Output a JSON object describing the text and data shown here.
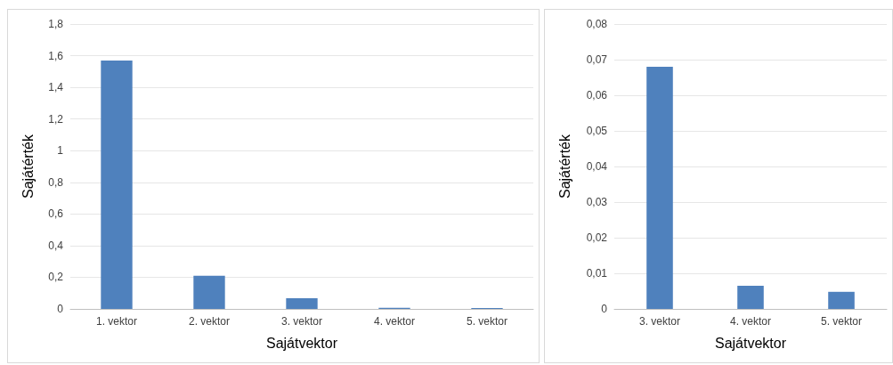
{
  "chart_data": [
    {
      "type": "bar",
      "xlabel": "Sajátvektor",
      "ylabel": "Sajátérték",
      "categories": [
        "1. vektor",
        "2. vektor",
        "3. vektor",
        "4. vektor",
        "5. vektor"
      ],
      "series": [
        {
          "color": "#4f81bd",
          "values": [
            1.57,
            0.21,
            0.068,
            0.007,
            0.005
          ]
        }
      ],
      "ylim": [
        0,
        1.8
      ],
      "yticks": [
        {
          "value": 0,
          "label": "0"
        },
        {
          "value": 0.2,
          "label": "0,2"
        },
        {
          "value": 0.4,
          "label": "0,4"
        },
        {
          "value": 0.6,
          "label": "0,6"
        },
        {
          "value": 0.8,
          "label": "0,8"
        },
        {
          "value": 1,
          "label": "1"
        },
        {
          "value": 1.2,
          "label": "1,2"
        },
        {
          "value": 1.4,
          "label": "1,4"
        },
        {
          "value": 1.6,
          "label": "1,6"
        },
        {
          "value": 1.8,
          "label": "1,8"
        }
      ],
      "grid": "y"
    },
    {
      "type": "bar",
      "xlabel": "Sajátvektor",
      "ylabel": "Sajátérték",
      "categories": [
        "3. vektor",
        "4. vektor",
        "5. vektor"
      ],
      "series": [
        {
          "color": "#4f81bd",
          "values": [
            0.068,
            0.0065,
            0.0048
          ]
        }
      ],
      "ylim": [
        0,
        0.08
      ],
      "yticks": [
        {
          "value": 0,
          "label": "0"
        },
        {
          "value": 0.01,
          "label": "0,01"
        },
        {
          "value": 0.02,
          "label": "0,02"
        },
        {
          "value": 0.03,
          "label": "0,03"
        },
        {
          "value": 0.04,
          "label": "0,04"
        },
        {
          "value": 0.05,
          "label": "0,05"
        },
        {
          "value": 0.06,
          "label": "0,06"
        },
        {
          "value": 0.07,
          "label": "0,07"
        },
        {
          "value": 0.08,
          "label": "0,08"
        }
      ],
      "grid": "y"
    }
  ]
}
